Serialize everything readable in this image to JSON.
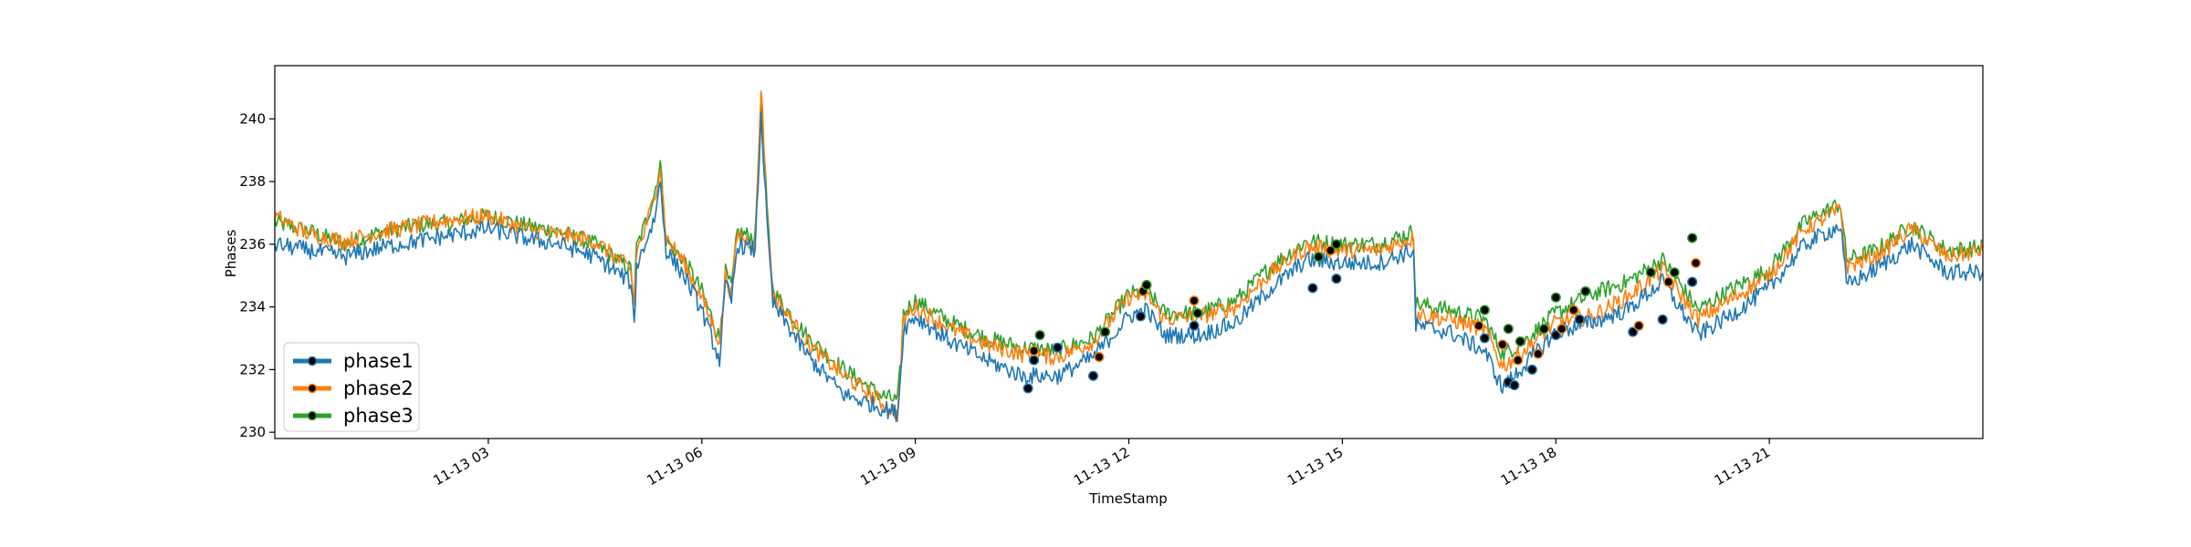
{
  "chart_data": {
    "type": "line",
    "xlabel": "TimeStamp",
    "ylabel": "Phases",
    "xlim": [
      "2021-11-13 00:00",
      "2021-11-14 00:00"
    ],
    "ylim": [
      229.8,
      241.7
    ],
    "x_tick_labels": [
      {
        "t": 3,
        "label": "11-13 03"
      },
      {
        "t": 6,
        "label": "11-13 06"
      },
      {
        "t": 9,
        "label": "11-13 09"
      },
      {
        "t": 12,
        "label": "11-13 12"
      },
      {
        "t": 15,
        "label": "11-13 15"
      },
      {
        "t": 18,
        "label": "11-13 18"
      },
      {
        "t": 21,
        "label": "11-13 21"
      }
    ],
    "y_ticks": [
      230,
      232,
      234,
      236,
      238,
      240
    ],
    "grid": false,
    "legend_position": "lower-left",
    "legend": [
      "phase1",
      "phase2",
      "phase3"
    ],
    "colors": {
      "phase1": "#1f77b4",
      "phase2": "#ff7f0e",
      "phase3": "#2ca02c",
      "marker": "#000000"
    },
    "series": [
      {
        "name": "phase3",
        "x": [
          "00:00",
          "00:30",
          "01:00",
          "01:30",
          "02:00",
          "02:30",
          "03:00",
          "03:30",
          "04:00",
          "04:30",
          "05:00",
          "05:03",
          "05:05",
          "05:10",
          "05:20",
          "05:25",
          "05:30",
          "05:45",
          "06:00",
          "06:15",
          "06:20",
          "06:25",
          "06:30",
          "06:45",
          "06:50",
          "06:55",
          "07:00",
          "07:30",
          "08:00",
          "08:30",
          "08:45",
          "08:48",
          "08:50",
          "09:00",
          "09:30",
          "10:00",
          "10:30",
          "11:00",
          "11:30",
          "12:00",
          "12:15",
          "12:30",
          "13:00",
          "13:30",
          "14:00",
          "14:30",
          "15:00",
          "15:30",
          "16:00",
          "16:02",
          "16:30",
          "17:00",
          "17:15",
          "17:30",
          "18:00",
          "18:30",
          "19:00",
          "19:30",
          "20:00",
          "20:30",
          "21:00",
          "21:30",
          "22:00",
          "22:05",
          "22:30",
          "23:00",
          "23:30",
          "24:00"
        ],
        "y": [
          236.7,
          236.4,
          236.0,
          236.4,
          236.6,
          236.7,
          236.9,
          236.6,
          236.4,
          236.0,
          235.2,
          234.2,
          235.9,
          236.4,
          237.6,
          238.6,
          236.1,
          235.5,
          234.5,
          233.0,
          235.1,
          234.6,
          236.4,
          236.2,
          240.6,
          237.1,
          234.5,
          233.0,
          232.0,
          231.2,
          231.0,
          232.3,
          233.8,
          234.2,
          233.5,
          233.0,
          232.7,
          232.6,
          233.0,
          234.4,
          234.5,
          233.8,
          233.8,
          234.2,
          235.3,
          236.1,
          236.0,
          236.0,
          236.4,
          234.1,
          233.9,
          233.6,
          232.5,
          232.8,
          233.8,
          234.4,
          234.8,
          235.5,
          233.9,
          234.6,
          235.2,
          236.7,
          237.3,
          235.5,
          235.8,
          236.6,
          235.8,
          235.9
        ]
      },
      {
        "name": "phase2",
        "x": [
          "00:00",
          "00:30",
          "01:00",
          "01:30",
          "02:00",
          "02:30",
          "03:00",
          "03:30",
          "04:00",
          "04:30",
          "05:00",
          "05:03",
          "05:05",
          "05:10",
          "05:20",
          "05:25",
          "05:30",
          "05:45",
          "06:00",
          "06:15",
          "06:20",
          "06:25",
          "06:30",
          "06:45",
          "06:50",
          "06:55",
          "07:00",
          "07:30",
          "08:00",
          "08:30",
          "08:45",
          "08:48",
          "08:50",
          "09:00",
          "09:30",
          "10:00",
          "10:30",
          "11:00",
          "11:30",
          "12:00",
          "12:15",
          "12:30",
          "13:00",
          "13:30",
          "14:00",
          "14:30",
          "15:00",
          "15:30",
          "16:00",
          "16:02",
          "16:30",
          "17:00",
          "17:15",
          "17:30",
          "18:00",
          "18:30",
          "19:00",
          "19:30",
          "20:00",
          "20:30",
          "21:00",
          "21:30",
          "22:00",
          "22:05",
          "22:30",
          "23:00",
          "23:30",
          "24:00"
        ],
        "y": [
          236.9,
          236.3,
          236.1,
          236.4,
          236.6,
          236.8,
          236.9,
          236.5,
          236.3,
          236.1,
          235.2,
          234.1,
          235.8,
          236.2,
          237.5,
          238.5,
          236.2,
          235.4,
          234.3,
          232.9,
          235.0,
          234.4,
          236.3,
          236.0,
          241.1,
          237.0,
          234.4,
          232.8,
          231.8,
          231.0,
          230.6,
          232.2,
          233.6,
          234.0,
          233.3,
          232.8,
          232.5,
          232.4,
          232.9,
          234.3,
          234.4,
          233.6,
          233.7,
          234.0,
          235.1,
          235.9,
          235.8,
          235.8,
          236.2,
          233.8,
          233.6,
          233.3,
          232.1,
          232.5,
          233.5,
          233.7,
          234.3,
          235.2,
          233.6,
          234.3,
          235.0,
          236.5,
          237.1,
          235.3,
          235.6,
          236.5,
          235.6,
          235.8
        ]
      },
      {
        "name": "phase1",
        "x": [
          "00:00",
          "00:30",
          "01:00",
          "01:30",
          "02:00",
          "02:30",
          "03:00",
          "03:30",
          "04:00",
          "04:30",
          "05:00",
          "05:03",
          "05:05",
          "05:10",
          "05:20",
          "05:25",
          "05:30",
          "05:45",
          "06:00",
          "06:15",
          "06:20",
          "06:25",
          "06:30",
          "06:45",
          "06:50",
          "06:55",
          "07:00",
          "07:30",
          "08:00",
          "08:30",
          "08:45",
          "08:48",
          "08:50",
          "09:00",
          "09:30",
          "10:00",
          "10:30",
          "11:00",
          "11:30",
          "12:00",
          "12:15",
          "12:30",
          "13:00",
          "13:30",
          "14:00",
          "14:30",
          "15:00",
          "15:30",
          "16:00",
          "16:02",
          "16:30",
          "17:00",
          "17:15",
          "17:30",
          "18:00",
          "18:30",
          "19:00",
          "19:30",
          "20:00",
          "20:30",
          "21:00",
          "21:30",
          "22:00",
          "22:05",
          "22:30",
          "23:00",
          "23:30",
          "24:00"
        ],
        "y": [
          236.0,
          235.8,
          235.6,
          235.9,
          236.1,
          236.3,
          236.5,
          236.2,
          236.0,
          235.6,
          234.8,
          233.4,
          235.3,
          235.8,
          236.8,
          238.0,
          235.8,
          235.0,
          233.9,
          232.3,
          234.7,
          234.2,
          236.0,
          235.8,
          240.2,
          236.6,
          234.1,
          232.4,
          231.2,
          230.8,
          230.6,
          232.0,
          233.3,
          233.7,
          232.9,
          232.3,
          231.8,
          231.8,
          232.4,
          233.7,
          233.9,
          233.1,
          233.1,
          233.5,
          234.6,
          235.5,
          235.4,
          235.4,
          235.8,
          233.4,
          233.2,
          232.6,
          231.4,
          232.0,
          233.2,
          233.5,
          233.9,
          234.8,
          233.1,
          233.8,
          234.6,
          236.0,
          236.6,
          234.7,
          235.2,
          236.0,
          235.1,
          235.1
        ]
      }
    ],
    "markers": {
      "phase1": [
        [
          "10:35",
          231.4
        ],
        [
          "10:40",
          232.3
        ],
        [
          "11:00",
          232.7
        ],
        [
          "11:30",
          231.8
        ],
        [
          "12:10",
          233.7
        ],
        [
          "12:55",
          233.4
        ],
        [
          "14:35",
          234.6
        ],
        [
          "14:55",
          234.9
        ],
        [
          "17:00",
          233.0
        ],
        [
          "17:20",
          231.6
        ],
        [
          "17:25",
          231.5
        ],
        [
          "17:40",
          232.0
        ],
        [
          "18:00",
          233.1
        ],
        [
          "18:20",
          233.6
        ],
        [
          "19:05",
          233.2
        ],
        [
          "19:30",
          233.6
        ],
        [
          "19:55",
          234.8
        ]
      ],
      "phase2": [
        [
          "10:40",
          232.6
        ],
        [
          "11:35",
          232.4
        ],
        [
          "12:12",
          234.5
        ],
        [
          "12:55",
          234.2
        ],
        [
          "14:50",
          235.8
        ],
        [
          "16:55",
          233.4
        ],
        [
          "17:15",
          232.8
        ],
        [
          "17:28",
          232.3
        ],
        [
          "17:45",
          232.5
        ],
        [
          "18:05",
          233.3
        ],
        [
          "18:15",
          233.9
        ],
        [
          "19:10",
          233.4
        ],
        [
          "19:35",
          234.8
        ],
        [
          "19:58",
          235.4
        ]
      ],
      "phase3": [
        [
          "10:45",
          233.1
        ],
        [
          "11:40",
          233.2
        ],
        [
          "12:15",
          234.7
        ],
        [
          "12:58",
          233.8
        ],
        [
          "14:40",
          235.6
        ],
        [
          "14:55",
          236.0
        ],
        [
          "17:00",
          233.9
        ],
        [
          "17:20",
          233.3
        ],
        [
          "17:30",
          232.9
        ],
        [
          "17:50",
          233.3
        ],
        [
          "18:00",
          234.3
        ],
        [
          "18:25",
          234.5
        ],
        [
          "19:20",
          235.1
        ],
        [
          "19:40",
          235.1
        ],
        [
          "19:55",
          236.2
        ]
      ]
    }
  }
}
